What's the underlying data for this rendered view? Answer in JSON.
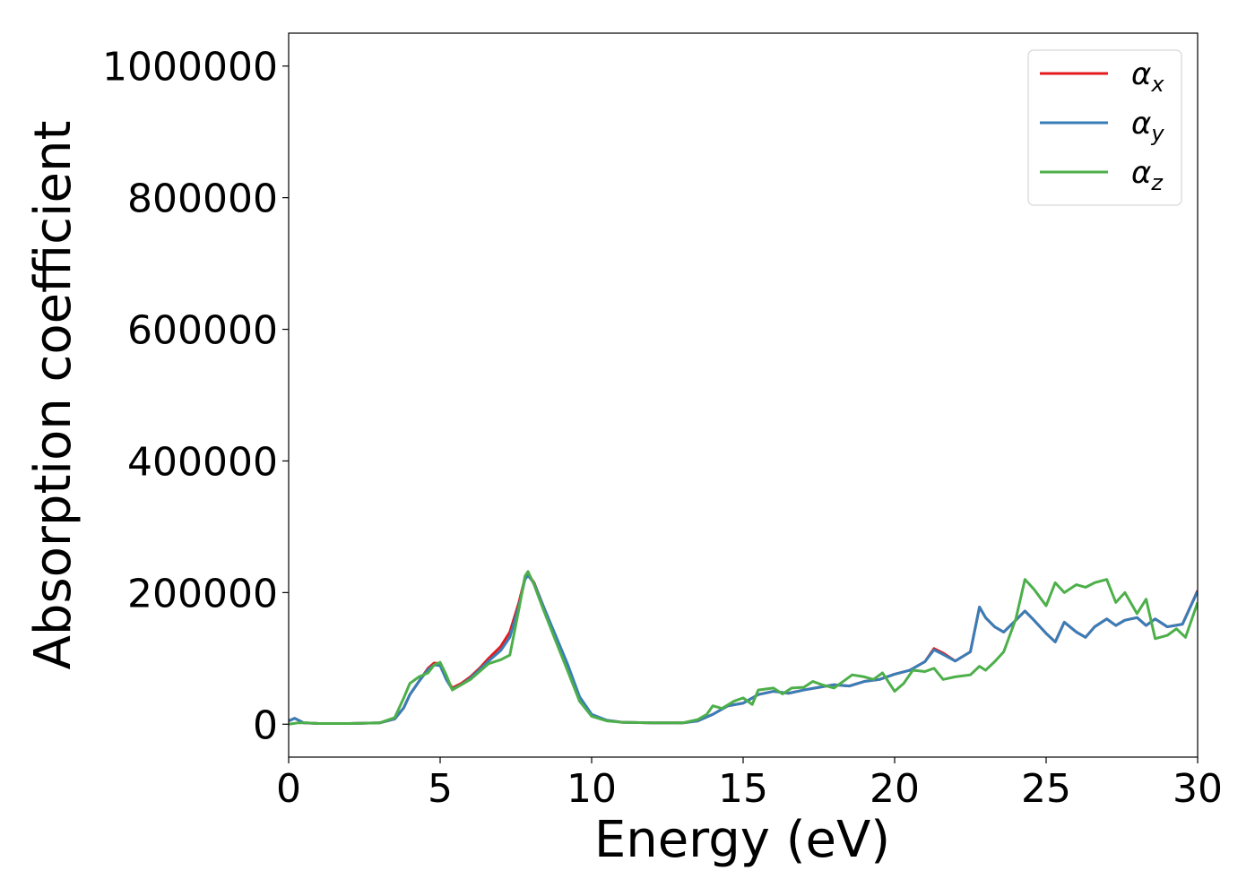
{
  "chart_data": {
    "type": "line",
    "title": "",
    "xlabel": "Energy (eV)",
    "ylabel": "Absorption coefficient",
    "xlim": [
      0,
      30
    ],
    "ylim": [
      -50000,
      1050000
    ],
    "xticks": [
      "0",
      "5",
      "10",
      "15",
      "20",
      "25",
      "30"
    ],
    "yticks": [
      "0",
      "200000",
      "400000",
      "600000",
      "800000",
      "1000000"
    ],
    "grid": false,
    "legend_position": "top-right",
    "series": [
      {
        "name": "α_x",
        "label_main": "α",
        "label_sub": "x",
        "color": "#e41a1c",
        "points": [
          [
            0,
            5000
          ],
          [
            0.2,
            9000
          ],
          [
            0.5,
            2000
          ],
          [
            1,
            1000
          ],
          [
            2,
            1000
          ],
          [
            3,
            2000
          ],
          [
            3.5,
            8000
          ],
          [
            3.8,
            25000
          ],
          [
            4,
            45000
          ],
          [
            4.3,
            65000
          ],
          [
            4.6,
            85000
          ],
          [
            4.8,
            93000
          ],
          [
            5,
            92000
          ],
          [
            5.2,
            70000
          ],
          [
            5.4,
            55000
          ],
          [
            5.7,
            62000
          ],
          [
            6,
            72000
          ],
          [
            6.3,
            85000
          ],
          [
            6.6,
            100000
          ],
          [
            7,
            118000
          ],
          [
            7.3,
            140000
          ],
          [
            7.6,
            185000
          ],
          [
            7.8,
            222000
          ],
          [
            7.9,
            228000
          ],
          [
            8.1,
            215000
          ],
          [
            8.4,
            180000
          ],
          [
            8.8,
            135000
          ],
          [
            9.2,
            90000
          ],
          [
            9.6,
            40000
          ],
          [
            10,
            14000
          ],
          [
            10.5,
            6000
          ],
          [
            11,
            3000
          ],
          [
            12,
            2000
          ],
          [
            13,
            2000
          ],
          [
            13.5,
            5000
          ],
          [
            14,
            15000
          ],
          [
            14.5,
            28000
          ],
          [
            15,
            32000
          ],
          [
            15.5,
            45000
          ],
          [
            16,
            50000
          ],
          [
            16.5,
            47000
          ],
          [
            17,
            52000
          ],
          [
            17.5,
            56000
          ],
          [
            18,
            60000
          ],
          [
            18.5,
            58000
          ],
          [
            19,
            65000
          ],
          [
            19.5,
            68000
          ],
          [
            20,
            76000
          ],
          [
            20.5,
            82000
          ],
          [
            21,
            95000
          ],
          [
            21.3,
            115000
          ],
          [
            21.6,
            108000
          ],
          [
            22,
            96000
          ],
          [
            22.5,
            110000
          ],
          [
            22.8,
            178000
          ],
          [
            23,
            162000
          ],
          [
            23.3,
            148000
          ],
          [
            23.6,
            140000
          ],
          [
            24,
            158000
          ],
          [
            24.3,
            172000
          ],
          [
            24.6,
            158000
          ],
          [
            25,
            138000
          ],
          [
            25.3,
            125000
          ],
          [
            25.6,
            155000
          ],
          [
            26,
            140000
          ],
          [
            26.3,
            132000
          ],
          [
            26.6,
            148000
          ],
          [
            27,
            160000
          ],
          [
            27.3,
            150000
          ],
          [
            27.6,
            158000
          ],
          [
            28,
            162000
          ],
          [
            28.3,
            150000
          ],
          [
            28.6,
            160000
          ],
          [
            29,
            148000
          ],
          [
            29.5,
            152000
          ],
          [
            30,
            203000
          ]
        ]
      },
      {
        "name": "α_y",
        "label_main": "α",
        "label_sub": "y",
        "color": "#377eb8",
        "points": [
          [
            0,
            5000
          ],
          [
            0.2,
            9000
          ],
          [
            0.5,
            2000
          ],
          [
            1,
            1000
          ],
          [
            2,
            1000
          ],
          [
            3,
            2000
          ],
          [
            3.5,
            8000
          ],
          [
            3.8,
            25000
          ],
          [
            4,
            45000
          ],
          [
            4.3,
            65000
          ],
          [
            4.6,
            83000
          ],
          [
            4.8,
            90000
          ],
          [
            5,
            89000
          ],
          [
            5.2,
            68000
          ],
          [
            5.4,
            53000
          ],
          [
            5.7,
            60000
          ],
          [
            6,
            70000
          ],
          [
            6.3,
            83000
          ],
          [
            6.6,
            96000
          ],
          [
            7,
            112000
          ],
          [
            7.3,
            132000
          ],
          [
            7.6,
            180000
          ],
          [
            7.8,
            220000
          ],
          [
            7.9,
            226000
          ],
          [
            8.1,
            214000
          ],
          [
            8.4,
            180000
          ],
          [
            8.8,
            136000
          ],
          [
            9.2,
            92000
          ],
          [
            9.6,
            42000
          ],
          [
            10,
            15000
          ],
          [
            10.5,
            6000
          ],
          [
            11,
            3000
          ],
          [
            12,
            2000
          ],
          [
            13,
            2000
          ],
          [
            13.5,
            5000
          ],
          [
            14,
            15000
          ],
          [
            14.5,
            28000
          ],
          [
            15,
            32000
          ],
          [
            15.5,
            45000
          ],
          [
            16,
            50000
          ],
          [
            16.5,
            47000
          ],
          [
            17,
            52000
          ],
          [
            17.5,
            56000
          ],
          [
            18,
            60000
          ],
          [
            18.5,
            58000
          ],
          [
            19,
            65000
          ],
          [
            19.5,
            68000
          ],
          [
            20,
            76000
          ],
          [
            20.5,
            82000
          ],
          [
            21,
            95000
          ],
          [
            21.3,
            113000
          ],
          [
            21.6,
            106000
          ],
          [
            22,
            96000
          ],
          [
            22.5,
            110000
          ],
          [
            22.8,
            178000
          ],
          [
            23,
            162000
          ],
          [
            23.3,
            148000
          ],
          [
            23.6,
            140000
          ],
          [
            24,
            158000
          ],
          [
            24.3,
            172000
          ],
          [
            24.6,
            158000
          ],
          [
            25,
            138000
          ],
          [
            25.3,
            125000
          ],
          [
            25.6,
            155000
          ],
          [
            26,
            140000
          ],
          [
            26.3,
            132000
          ],
          [
            26.6,
            148000
          ],
          [
            27,
            160000
          ],
          [
            27.3,
            150000
          ],
          [
            27.6,
            158000
          ],
          [
            28,
            162000
          ],
          [
            28.3,
            150000
          ],
          [
            28.6,
            160000
          ],
          [
            29,
            148000
          ],
          [
            29.5,
            152000
          ],
          [
            30,
            202000
          ]
        ]
      },
      {
        "name": "α_z",
        "label_main": "α",
        "label_sub": "z",
        "color": "#4daf4a",
        "points": [
          [
            0,
            0
          ],
          [
            0.3,
            2000
          ],
          [
            0.6,
            2000
          ],
          [
            1,
            1000
          ],
          [
            2,
            1000
          ],
          [
            3,
            2000
          ],
          [
            3.5,
            10000
          ],
          [
            3.8,
            40000
          ],
          [
            4,
            62000
          ],
          [
            4.3,
            72000
          ],
          [
            4.6,
            78000
          ],
          [
            4.8,
            90000
          ],
          [
            5,
            94000
          ],
          [
            5.2,
            75000
          ],
          [
            5.4,
            52000
          ],
          [
            5.7,
            60000
          ],
          [
            6,
            68000
          ],
          [
            6.3,
            80000
          ],
          [
            6.6,
            92000
          ],
          [
            7,
            98000
          ],
          [
            7.3,
            105000
          ],
          [
            7.6,
            175000
          ],
          [
            7.8,
            225000
          ],
          [
            7.9,
            232000
          ],
          [
            8.1,
            212000
          ],
          [
            8.4,
            175000
          ],
          [
            8.8,
            128000
          ],
          [
            9.2,
            82000
          ],
          [
            9.6,
            35000
          ],
          [
            10,
            12000
          ],
          [
            10.5,
            5000
          ],
          [
            11,
            3000
          ],
          [
            12,
            2000
          ],
          [
            13,
            2000
          ],
          [
            13.5,
            7000
          ],
          [
            13.8,
            15000
          ],
          [
            14,
            28000
          ],
          [
            14.3,
            24000
          ],
          [
            14.7,
            35000
          ],
          [
            15,
            40000
          ],
          [
            15.3,
            30000
          ],
          [
            15.5,
            52000
          ],
          [
            16,
            55000
          ],
          [
            16.3,
            46000
          ],
          [
            16.6,
            55000
          ],
          [
            17,
            56000
          ],
          [
            17.3,
            65000
          ],
          [
            17.6,
            60000
          ],
          [
            18,
            55000
          ],
          [
            18.3,
            65000
          ],
          [
            18.6,
            75000
          ],
          [
            19,
            72000
          ],
          [
            19.3,
            68000
          ],
          [
            19.6,
            78000
          ],
          [
            20,
            50000
          ],
          [
            20.3,
            62000
          ],
          [
            20.6,
            82000
          ],
          [
            21,
            80000
          ],
          [
            21.3,
            85000
          ],
          [
            21.6,
            68000
          ],
          [
            22,
            72000
          ],
          [
            22.5,
            75000
          ],
          [
            22.8,
            88000
          ],
          [
            23,
            82000
          ],
          [
            23.3,
            95000
          ],
          [
            23.6,
            110000
          ],
          [
            24,
            160000
          ],
          [
            24.3,
            220000
          ],
          [
            24.6,
            205000
          ],
          [
            25,
            180000
          ],
          [
            25.3,
            215000
          ],
          [
            25.6,
            200000
          ],
          [
            26,
            212000
          ],
          [
            26.3,
            208000
          ],
          [
            26.6,
            215000
          ],
          [
            27,
            220000
          ],
          [
            27.3,
            185000
          ],
          [
            27.6,
            200000
          ],
          [
            28,
            168000
          ],
          [
            28.3,
            190000
          ],
          [
            28.6,
            130000
          ],
          [
            29,
            135000
          ],
          [
            29.3,
            145000
          ],
          [
            29.6,
            132000
          ],
          [
            30,
            185000
          ]
        ]
      }
    ]
  }
}
